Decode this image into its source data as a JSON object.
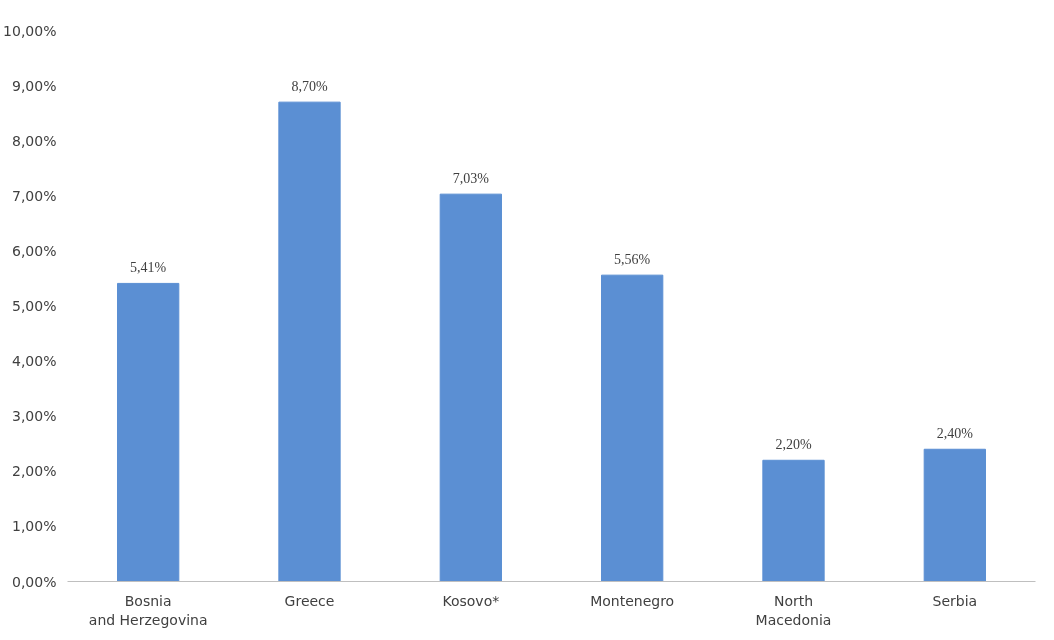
{
  "chart_data": {
    "type": "bar",
    "categories": [
      "Bosnia and Herzegovina",
      "Greece",
      "Kosovo*",
      "Montenegro",
      "North Macedonia",
      "Serbia"
    ],
    "values": [
      5.41,
      8.7,
      7.03,
      5.56,
      2.2,
      2.4
    ],
    "value_labels": [
      "5,41%",
      "8,70%",
      "7,03%",
      "5,56%",
      "2,20%",
      "2,40%"
    ],
    "color": "#5b8fd3",
    "ylim": [
      0,
      10
    ],
    "yticks": [
      {
        "value": 0,
        "label": "0,00%"
      },
      {
        "value": 1,
        "label": "1,00%"
      },
      {
        "value": 2,
        "label": "2,00%"
      },
      {
        "value": 3,
        "label": "3,00%"
      },
      {
        "value": 4,
        "label": "4,00%"
      },
      {
        "value": 5,
        "label": "5,00%"
      },
      {
        "value": 6,
        "label": "6,00%"
      },
      {
        "value": 7,
        "label": "7,00%"
      },
      {
        "value": 8,
        "label": "8,00%"
      },
      {
        "value": 9,
        "label": "9,00%"
      },
      {
        "value": 10,
        "label": "10,00%"
      }
    ],
    "grid": false
  }
}
